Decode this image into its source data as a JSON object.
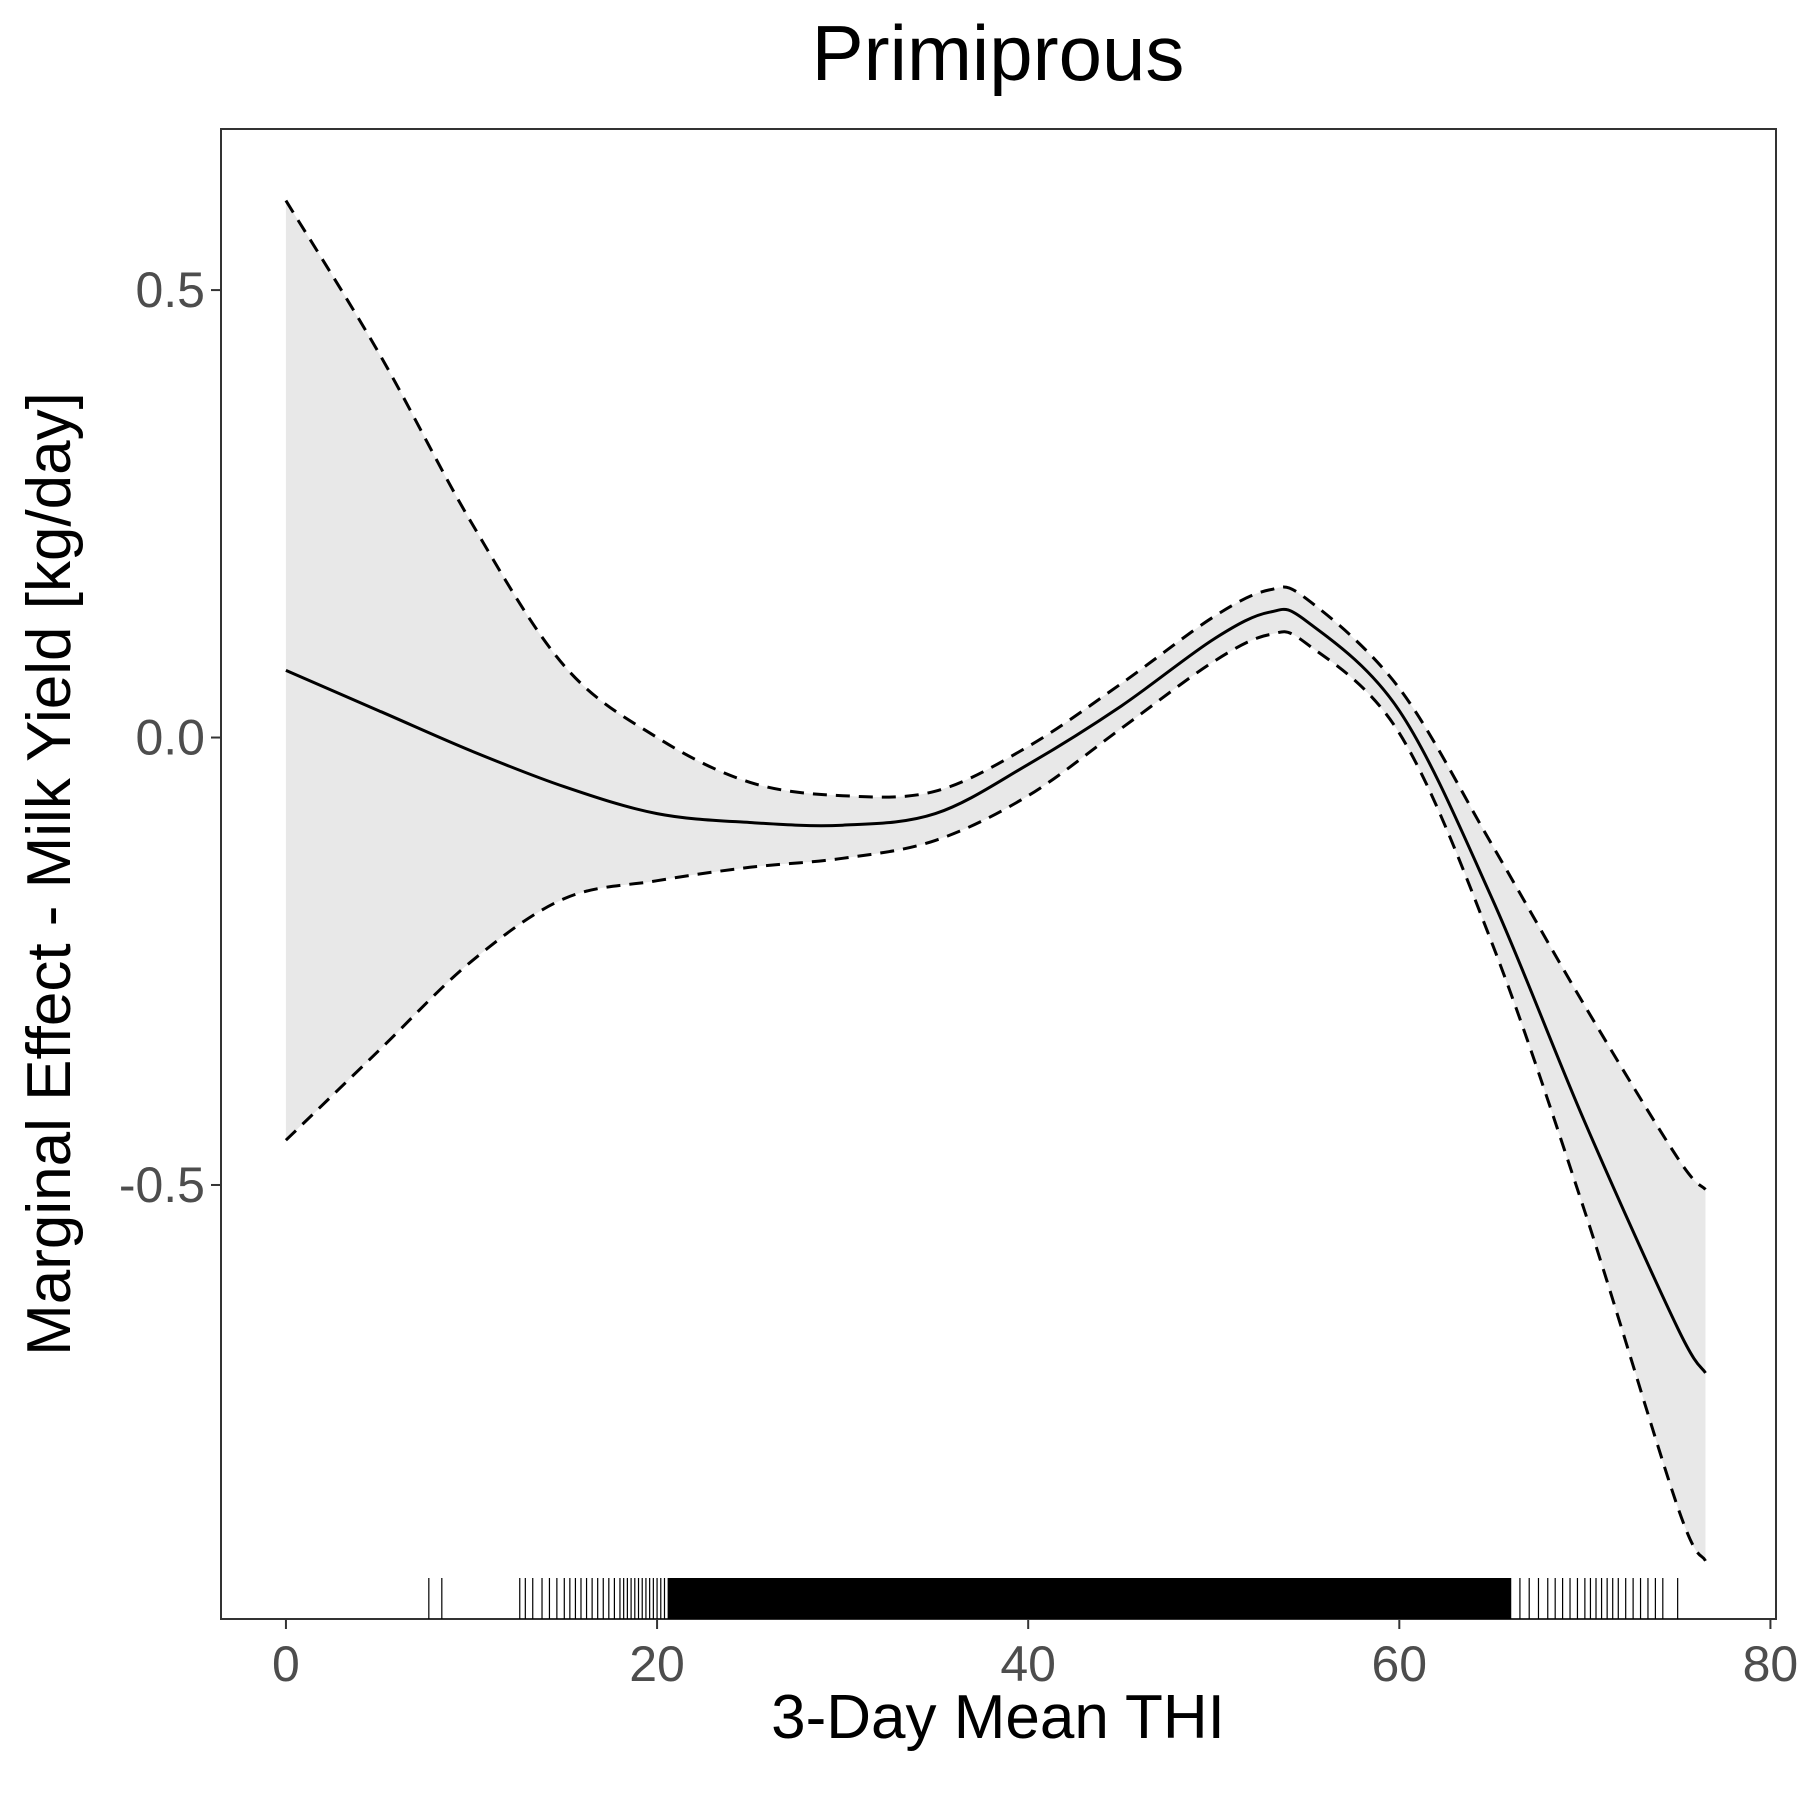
{
  "chart_data": {
    "type": "line",
    "title": "Primiprous",
    "xlabel": "3-Day Mean THI",
    "ylabel": "Marginal Effect - Milk Yield [kg/day]",
    "xlim": [
      -3.5,
      80.3
    ],
    "ylim": [
      -0.985,
      0.68
    ],
    "x_ticks": [
      0,
      20,
      40,
      60,
      80
    ],
    "x_tick_labels": [
      "0",
      "20",
      "40",
      "60",
      "80"
    ],
    "y_ticks": [
      0.5,
      0.0,
      -0.5
    ],
    "y_tick_labels": [
      "0.5",
      "0.0",
      "-0.5"
    ],
    "grid": false,
    "series": [
      {
        "line": "solid",
        "x": [
          0,
          5,
          10,
          15,
          20,
          25,
          30,
          35,
          40,
          45,
          50,
          53,
          55,
          60,
          65,
          70,
          75,
          76.5
        ],
        "values": [
          0.075,
          0.03,
          -0.015,
          -0.055,
          -0.085,
          -0.095,
          -0.098,
          -0.085,
          -0.03,
          0.035,
          0.11,
          0.14,
          0.13,
          0.03,
          -0.18,
          -0.43,
          -0.66,
          -0.71
        ]
      },
      {
        "line": "dashed",
        "x": [
          0,
          5,
          10,
          15,
          20,
          25,
          30,
          35,
          40,
          45,
          50,
          53,
          55,
          60,
          65,
          70,
          75,
          76.5
        ],
        "values": [
          0.6,
          0.43,
          0.24,
          0.08,
          0.0,
          -0.05,
          -0.065,
          -0.06,
          -0.01,
          0.06,
          0.135,
          0.165,
          0.155,
          0.055,
          -0.12,
          -0.3,
          -0.47,
          -0.505
        ]
      },
      {
        "line": "dashed",
        "x": [
          0,
          5,
          10,
          15,
          20,
          25,
          30,
          35,
          40,
          45,
          50,
          53,
          55,
          60,
          65,
          70,
          75,
          76.5
        ],
        "values": [
          -0.45,
          -0.35,
          -0.25,
          -0.18,
          -0.16,
          -0.145,
          -0.135,
          -0.115,
          -0.065,
          0.01,
          0.085,
          0.115,
          0.105,
          0.005,
          -0.23,
          -0.53,
          -0.86,
          -0.92
        ]
      }
    ],
    "rug": [
      7.7,
      8.4,
      12.6,
      12.9,
      13.3,
      13.8,
      14.2,
      14.6,
      15.0,
      15.3,
      15.6,
      15.9,
      16.2,
      16.5,
      16.8,
      17.1,
      17.4,
      17.7,
      18.0,
      18.2,
      18.4,
      18.6,
      18.8,
      19.0,
      19.2,
      19.4,
      19.6,
      19.8,
      20.0,
      20.2,
      20.4,
      20.6,
      20.8,
      21.0,
      21.2,
      21.4,
      21.6,
      21.8,
      22.0,
      22.2,
      22.4,
      22.6,
      22.8,
      23.0,
      23.3,
      23.6,
      23.9,
      24.2,
      24.5,
      24.8,
      25.1,
      25.4,
      25.7,
      26.0,
      26.4,
      26.8,
      27.2,
      27.6,
      28.0,
      28.5,
      29.0,
      29.5,
      30.0,
      30.6,
      31.2,
      31.8,
      32.4,
      33.0,
      33.6,
      34.2,
      34.8,
      35.4,
      36.0,
      36.6,
      37.2,
      37.8,
      38.4,
      39.0,
      39.6,
      40.2,
      40.8,
      41.4,
      42.0,
      42.6,
      43.2,
      43.8,
      44.4,
      45.0,
      45.6,
      46.2,
      46.8,
      47.4,
      48.0,
      48.6,
      49.2,
      49.8,
      50.4,
      51.0,
      51.6,
      52.2,
      52.8,
      53.4,
      54.0,
      54.6,
      55.2,
      55.8,
      56.4,
      57.0,
      57.6,
      58.2,
      58.8,
      59.4,
      60.0,
      60.6,
      61.2,
      61.8,
      62.4,
      63.0,
      63.6,
      64.2,
      64.8,
      65.4,
      66.0,
      66.5,
      67.0,
      67.5,
      68.0,
      68.4,
      68.8,
      69.2,
      69.6,
      70.0,
      70.3,
      70.6,
      70.9,
      71.2,
      71.5,
      71.8,
      72.2,
      72.6,
      73.0,
      73.4,
      73.8,
      74.2,
      75.0
    ]
  }
}
